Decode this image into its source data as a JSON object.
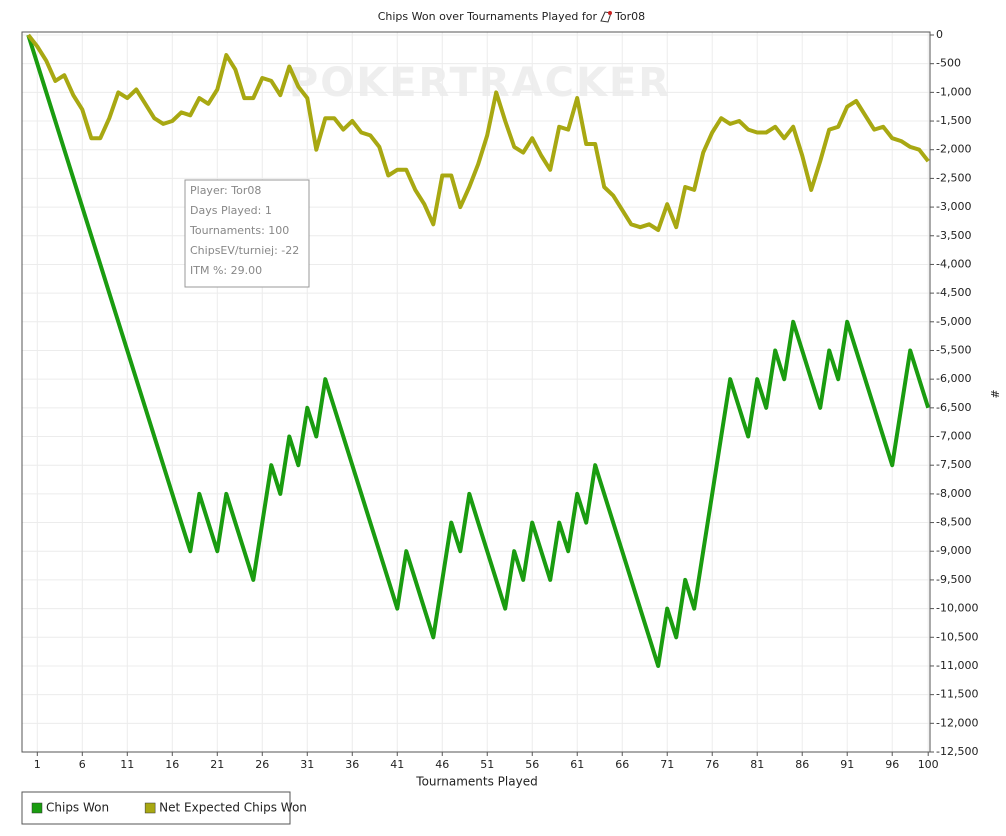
{
  "chart_data": {
    "type": "line",
    "title": "Chips Won over Tournaments Played for",
    "player": "Tor08",
    "watermark": "POKERTRACKER",
    "x_label": "Tournaments Played",
    "y_label": "#",
    "x": [
      0,
      1,
      2,
      3,
      4,
      5,
      6,
      7,
      8,
      9,
      10,
      11,
      12,
      13,
      14,
      15,
      16,
      17,
      18,
      19,
      20,
      21,
      22,
      23,
      24,
      25,
      26,
      27,
      28,
      29,
      30,
      31,
      32,
      33,
      34,
      35,
      36,
      37,
      38,
      39,
      40,
      41,
      42,
      43,
      44,
      45,
      46,
      47,
      48,
      49,
      50,
      51,
      52,
      53,
      54,
      55,
      56,
      57,
      58,
      59,
      60,
      61,
      62,
      63,
      64,
      65,
      66,
      67,
      68,
      69,
      70,
      71,
      72,
      73,
      74,
      75,
      76,
      77,
      78,
      79,
      80,
      81,
      82,
      83,
      84,
      85,
      86,
      87,
      88,
      89,
      90,
      91,
      92,
      93,
      94,
      95,
      96,
      97,
      98,
      99,
      100
    ],
    "series": [
      {
        "name": "Chips Won",
        "color": "#1a9c10",
        "values": [
          0,
          -500,
          -1000,
          -1500,
          -2000,
          -2500,
          -3000,
          -3500,
          -4000,
          -4500,
          -5000,
          -5500,
          -6000,
          -6500,
          -7000,
          -7500,
          -8000,
          -8500,
          -9000,
          -8000,
          -8500,
          -9000,
          -8000,
          -8500,
          -9000,
          -9500,
          -8500,
          -7500,
          -8000,
          -7000,
          -7500,
          -6500,
          -7000,
          -6000,
          -6500,
          -7000,
          -7500,
          -8000,
          -8500,
          -9000,
          -9500,
          -10000,
          -9000,
          -9500,
          -10000,
          -10500,
          -9500,
          -8500,
          -9000,
          -8000,
          -8500,
          -9000,
          -9500,
          -10000,
          -9000,
          -9500,
          -8500,
          -9000,
          -9500,
          -8500,
          -9000,
          -8000,
          -8500,
          -7500,
          -8000,
          -8500,
          -9000,
          -9500,
          -10000,
          -10500,
          -11000,
          -10000,
          -10500,
          -9500,
          -10000,
          -9000,
          -8000,
          -7000,
          -6000,
          -6500,
          -7000,
          -6000,
          -6500,
          -5500,
          -6000,
          -5000,
          -5500,
          -6000,
          -6500,
          -5500,
          -6000,
          -5000,
          -5500,
          -6000,
          -6500,
          -7000,
          -7500,
          -6500,
          -5500,
          -6000,
          -6500
        ]
      },
      {
        "name": "Net Expected Chips Won",
        "color": "#a8a812",
        "values": [
          0,
          -200,
          -450,
          -800,
          -700,
          -1050,
          -1300,
          -1800,
          -1800,
          -1450,
          -1000,
          -1100,
          -950,
          -1200,
          -1450,
          -1550,
          -1500,
          -1350,
          -1400,
          -1100,
          -1200,
          -950,
          -350,
          -600,
          -1100,
          -1100,
          -750,
          -800,
          -1050,
          -550,
          -900,
          -1100,
          -2000,
          -1450,
          -1450,
          -1650,
          -1500,
          -1700,
          -1750,
          -1950,
          -2450,
          -2350,
          -2350,
          -2700,
          -2950,
          -3300,
          -2450,
          -2450,
          -3000,
          -2650,
          -2250,
          -1750,
          -1000,
          -1500,
          -1950,
          -2050,
          -1800,
          -2100,
          -2350,
          -1600,
          -1650,
          -1100,
          -1900,
          -1900,
          -2650,
          -2800,
          -3050,
          -3300,
          -3350,
          -3300,
          -3400,
          -2950,
          -3350,
          -2650,
          -2700,
          -2050,
          -1700,
          -1450,
          -1550,
          -1500,
          -1650,
          -1700,
          -1700,
          -1600,
          -1800,
          -1600,
          -2100,
          -2700,
          -2200,
          -1650,
          -1600,
          -1250,
          -1150,
          -1400,
          -1650,
          -1600,
          -1800,
          -1850,
          -1950,
          -2000,
          -2200
        ]
      }
    ],
    "xlim": [
      -0.7,
      100.2
    ],
    "ylim": [
      -12500,
      0
    ],
    "xticks": [
      1,
      6,
      11,
      16,
      21,
      26,
      31,
      36,
      41,
      46,
      51,
      56,
      61,
      66,
      71,
      76,
      81,
      86,
      91,
      96,
      100
    ],
    "yticks": [
      0,
      -500,
      {
        "value": -1000,
        "label": "-1,000"
      },
      {
        "value": -1500,
        "label": "-1,500"
      },
      {
        "value": -2000,
        "label": "-2,000"
      },
      {
        "value": -2500,
        "label": "-2,500"
      },
      {
        "value": -3000,
        "label": "-3,000"
      },
      {
        "value": -3500,
        "label": "-3,500"
      },
      {
        "value": -4000,
        "label": "-4,000"
      },
      {
        "value": -4500,
        "label": "-4,500"
      },
      {
        "value": -5000,
        "label": "-5,000"
      },
      {
        "value": -5500,
        "label": "-5,500"
      },
      {
        "value": -6000,
        "label": "-6,000"
      },
      {
        "value": -6500,
        "label": "-6,500"
      },
      {
        "value": -7000,
        "label": "-7,000"
      },
      {
        "value": -7500,
        "label": "-7,500"
      },
      {
        "value": -8000,
        "label": "-8,000"
      },
      {
        "value": -8500,
        "label": "-8,500"
      },
      {
        "value": -9000,
        "label": "-9,000"
      },
      {
        "value": -9500,
        "label": "-9,500"
      },
      {
        "value": -10000,
        "label": "-10,000"
      },
      {
        "value": -10500,
        "label": "-10,500"
      },
      {
        "value": -11000,
        "label": "-11,000"
      },
      {
        "value": -11500,
        "label": "-11,500"
      },
      {
        "value": -12000,
        "label": "-12,000"
      },
      {
        "value": -12500,
        "label": "-12,500"
      }
    ],
    "grid": true,
    "legend": "bottom-left",
    "tooltip": [
      "Player: Tor08",
      "Days Played: 1",
      "Tournaments: 100",
      "ChipsEV/turniej: -22",
      "ITM %: 29.00"
    ]
  }
}
